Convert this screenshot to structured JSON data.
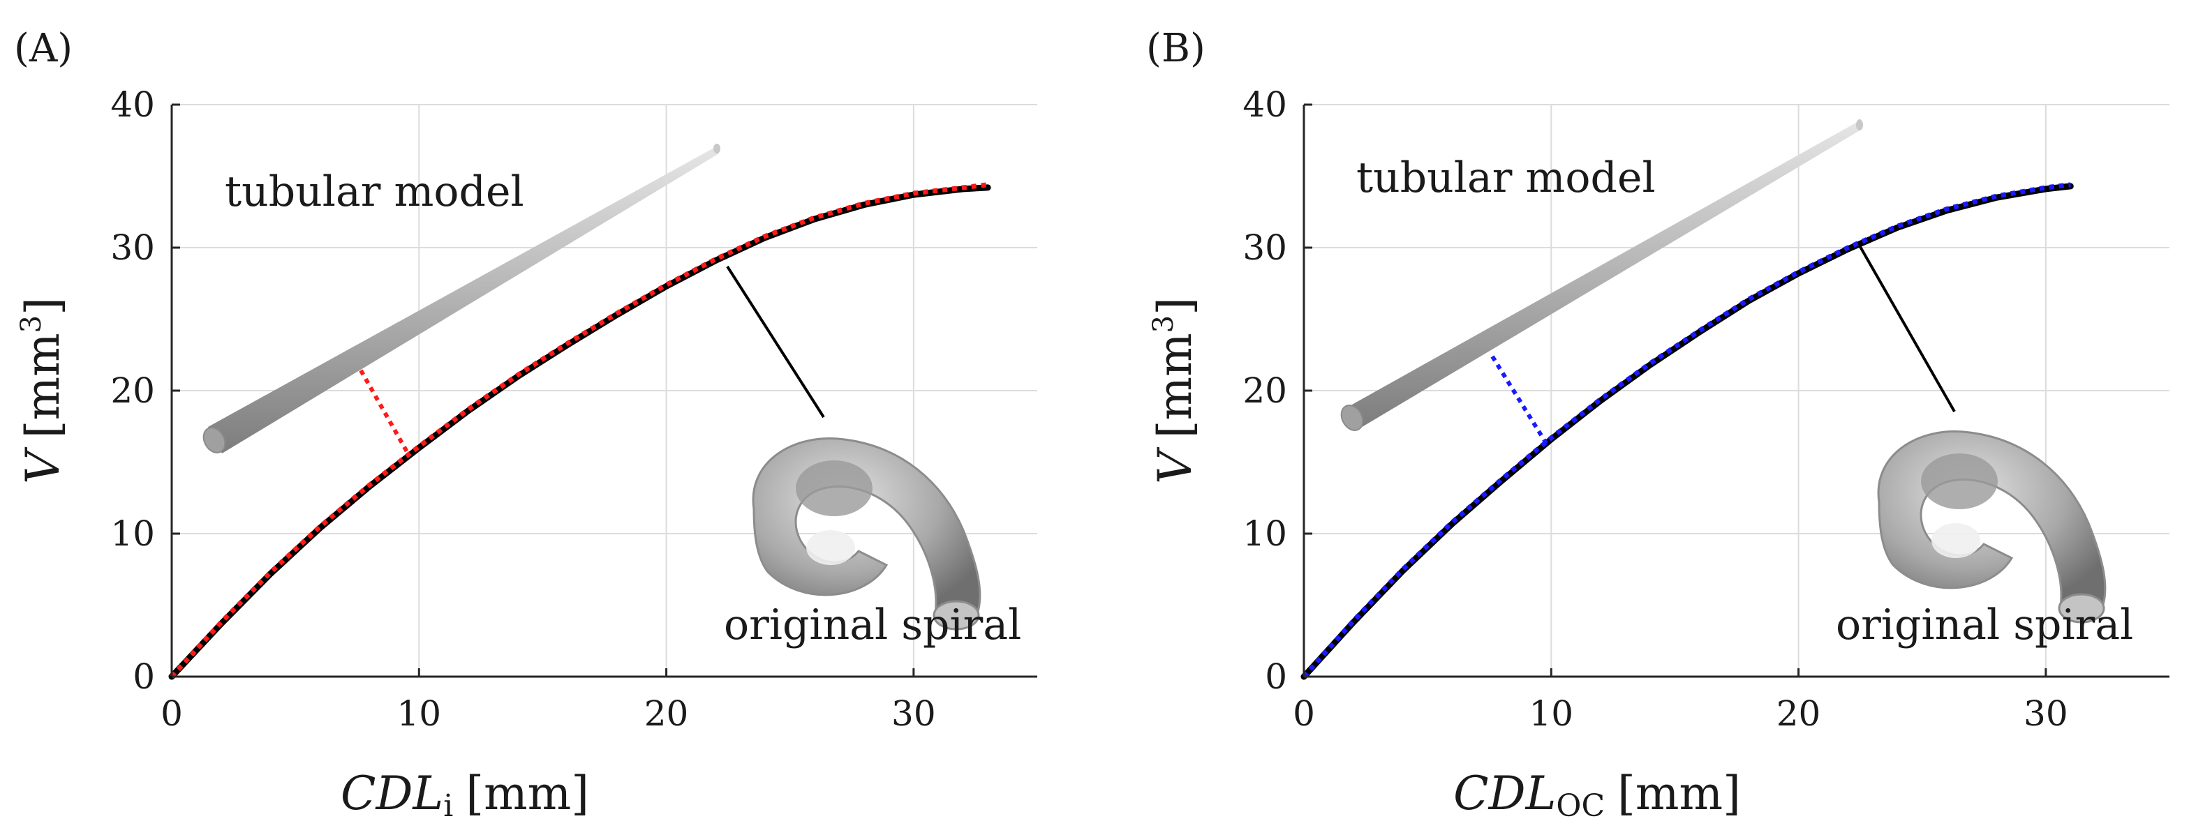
{
  "chart_data": [
    {
      "type": "line",
      "panel_label": "(A)",
      "xlabel_main": "CDL",
      "xlabel_sub": "i",
      "xlabel_unit": "[mm]",
      "ylabel_main": "V",
      "ylabel_unit": "[mm",
      "ylabel_sup": "3",
      "ylabel_close": "]",
      "xlim": [
        0,
        35
      ],
      "ylim": [
        0,
        40
      ],
      "xticks": [
        0,
        10,
        20,
        30
      ],
      "yticks": [
        0,
        10,
        20,
        30,
        40
      ],
      "grid": true,
      "fit_color": "#ff1a1a",
      "series": [
        {
          "name": "original spiral",
          "style": "solid",
          "color": "#000000",
          "x": [
            0,
            2,
            4,
            6,
            8,
            10,
            12,
            14,
            16,
            18,
            20,
            22,
            24,
            26,
            28,
            30,
            32,
            33
          ],
          "y": [
            0,
            3.7,
            7.2,
            10.4,
            13.3,
            16.0,
            18.6,
            21.0,
            23.2,
            25.3,
            27.3,
            29.1,
            30.7,
            32.0,
            33.0,
            33.7,
            34.1,
            34.2
          ]
        },
        {
          "name": "tubular model",
          "style": "dotted",
          "color": "#ff1a1a",
          "x": [
            0,
            2,
            4,
            6,
            8,
            10,
            12,
            14,
            16,
            18,
            20,
            22,
            24,
            26,
            28,
            30,
            32,
            33
          ],
          "y": [
            0,
            3.8,
            7.3,
            10.5,
            13.4,
            16.1,
            18.7,
            21.1,
            23.3,
            25.4,
            27.4,
            29.2,
            30.8,
            32.1,
            33.1,
            33.8,
            34.2,
            34.4
          ]
        }
      ],
      "annotations": {
        "tubular": "tubular model",
        "spiral": "original spiral"
      }
    },
    {
      "type": "line",
      "panel_label": "(B)",
      "xlabel_main": "CDL",
      "xlabel_sub": "OC",
      "xlabel_unit": "[mm]",
      "ylabel_main": "V",
      "ylabel_unit": "[mm",
      "ylabel_sup": "3",
      "ylabel_close": "]",
      "xlim": [
        0,
        35
      ],
      "ylim": [
        0,
        40
      ],
      "xticks": [
        0,
        10,
        20,
        30
      ],
      "yticks": [
        0,
        10,
        20,
        30,
        40
      ],
      "grid": true,
      "fit_color": "#1a1aff",
      "series": [
        {
          "name": "original spiral",
          "style": "solid",
          "color": "#000000",
          "x": [
            0,
            2,
            4,
            6,
            8,
            10,
            12,
            14,
            16,
            18,
            20,
            22,
            24,
            26,
            28,
            30,
            31
          ],
          "y": [
            0,
            3.8,
            7.4,
            10.7,
            13.7,
            16.6,
            19.3,
            21.8,
            24.1,
            26.3,
            28.2,
            29.9,
            31.4,
            32.6,
            33.5,
            34.1,
            34.3
          ]
        },
        {
          "name": "tubular model",
          "style": "dotted",
          "color": "#1a1aff",
          "x": [
            0,
            2,
            4,
            6,
            8,
            10,
            12,
            14,
            16,
            18,
            20,
            22,
            24,
            26,
            28,
            30,
            31
          ],
          "y": [
            0,
            3.9,
            7.5,
            10.8,
            13.8,
            16.7,
            19.4,
            21.9,
            24.2,
            26.4,
            28.3,
            30.0,
            31.5,
            32.7,
            33.6,
            34.2,
            34.4
          ]
        }
      ],
      "annotations": {
        "tubular": "tubular model",
        "spiral": "original spiral"
      }
    }
  ]
}
